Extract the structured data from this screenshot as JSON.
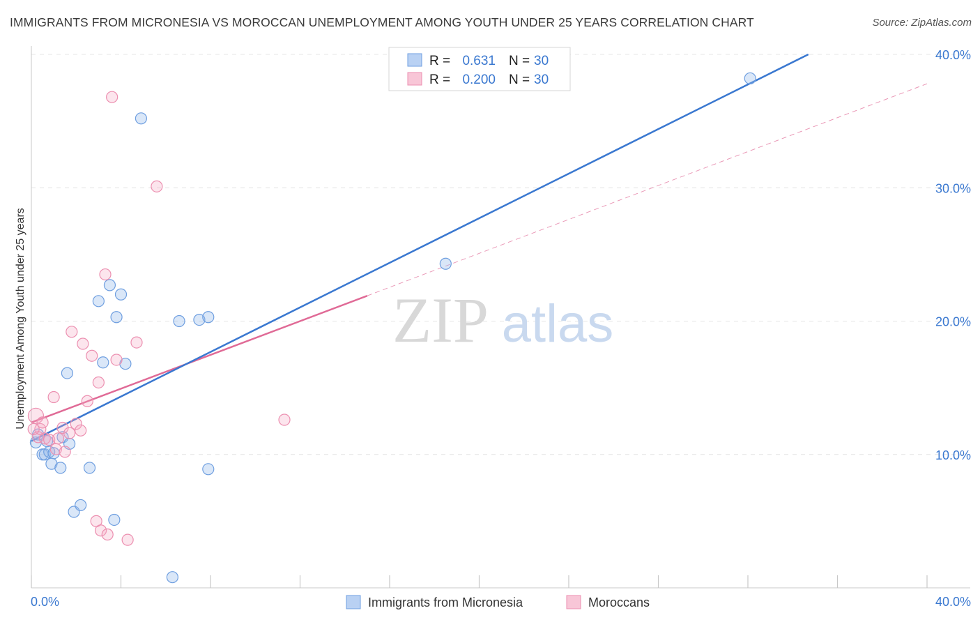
{
  "title": "IMMIGRANTS FROM MICRONESIA VS MOROCCAN UNEMPLOYMENT AMONG YOUTH UNDER 25 YEARS CORRELATION CHART",
  "source": "Source: ZipAtlas.com",
  "watermark": {
    "zip": "ZIP",
    "atlas": "atlas"
  },
  "colors": {
    "blue": "#6f9fe0",
    "blue_line": "#3a78d0",
    "pink": "#ec8fb0",
    "pink_line": "#e06a96",
    "axis_text": "#3a78d0"
  },
  "chart_data": {
    "type": "scatter",
    "title": "IMMIGRANTS FROM MICRONESIA VS MOROCCAN UNEMPLOYMENT AMONG YOUTH UNDER 25 YEARS CORRELATION CHART",
    "xlabel": "",
    "ylabel": "Unemployment Among Youth under 25 years",
    "xlim": [
      0,
      40
    ],
    "ylim": [
      0,
      40
    ],
    "x_tick_labels": [
      "0.0%",
      "40.0%"
    ],
    "y_ticks": [
      10,
      20,
      30,
      40
    ],
    "y_tick_labels": [
      "10.0%",
      "20.0%",
      "30.0%",
      "40.0%"
    ],
    "grid": true,
    "legend_position": "top-center",
    "stats": [
      {
        "r_label": "R =",
        "r_value": "0.631",
        "n_label": "N =",
        "n_value": "30"
      },
      {
        "r_label": "R =",
        "r_value": "0.200",
        "n_label": "N =",
        "n_value": "30"
      }
    ],
    "series": [
      {
        "name": "Immigrants from Micronesia",
        "color": "#6f9fe0",
        "points": [
          [
            0.2,
            10.9
          ],
          [
            0.3,
            11.5
          ],
          [
            0.5,
            10.0
          ],
          [
            0.6,
            10.0
          ],
          [
            0.8,
            10.2
          ],
          [
            0.9,
            9.3
          ],
          [
            1.0,
            10.1
          ],
          [
            1.3,
            9.0
          ],
          [
            1.4,
            11.3
          ],
          [
            1.6,
            16.1
          ],
          [
            1.7,
            10.8
          ],
          [
            1.9,
            5.7
          ],
          [
            2.2,
            6.2
          ],
          [
            2.6,
            9.0
          ],
          [
            3.0,
            21.5
          ],
          [
            3.2,
            16.9
          ],
          [
            3.5,
            22.7
          ],
          [
            3.7,
            5.1
          ],
          [
            3.8,
            20.3
          ],
          [
            4.0,
            22.0
          ],
          [
            4.2,
            16.8
          ],
          [
            4.9,
            35.2
          ],
          [
            6.3,
            0.8
          ],
          [
            6.6,
            20.0
          ],
          [
            7.5,
            20.1
          ],
          [
            7.9,
            20.3
          ],
          [
            7.9,
            8.9
          ],
          [
            18.5,
            24.3
          ],
          [
            32.1,
            38.2
          ],
          [
            0.7,
            11.0
          ]
        ],
        "trend": {
          "x": [
            0,
            34.7
          ],
          "y": [
            11.0,
            40.0
          ]
        }
      },
      {
        "name": "Moroccans",
        "color": "#ec8fb0",
        "points": [
          [
            0.2,
            12.9
          ],
          [
            0.3,
            11.3
          ],
          [
            0.4,
            11.9
          ],
          [
            0.5,
            12.4
          ],
          [
            0.6,
            11.2
          ],
          [
            0.8,
            11.1
          ],
          [
            1.0,
            14.3
          ],
          [
            1.1,
            10.4
          ],
          [
            1.4,
            12.0
          ],
          [
            1.5,
            10.2
          ],
          [
            1.7,
            11.6
          ],
          [
            1.8,
            19.2
          ],
          [
            2.0,
            12.3
          ],
          [
            2.2,
            11.8
          ],
          [
            2.3,
            18.3
          ],
          [
            2.5,
            14.0
          ],
          [
            2.7,
            17.4
          ],
          [
            2.9,
            5.0
          ],
          [
            3.0,
            15.4
          ],
          [
            3.1,
            4.3
          ],
          [
            3.3,
            23.5
          ],
          [
            3.4,
            4.0
          ],
          [
            3.6,
            36.8
          ],
          [
            3.8,
            17.1
          ],
          [
            4.3,
            3.6
          ],
          [
            4.7,
            18.4
          ],
          [
            5.6,
            30.1
          ],
          [
            11.3,
            12.6
          ],
          [
            0.1,
            11.9
          ],
          [
            1.2,
            11.2
          ]
        ],
        "trend": {
          "x": [
            0,
            15.0
          ],
          "y": [
            12.4,
            21.9
          ]
        },
        "trend_extension": {
          "x": [
            15.0,
            40.0
          ],
          "y": [
            21.9,
            37.8
          ]
        }
      }
    ]
  }
}
